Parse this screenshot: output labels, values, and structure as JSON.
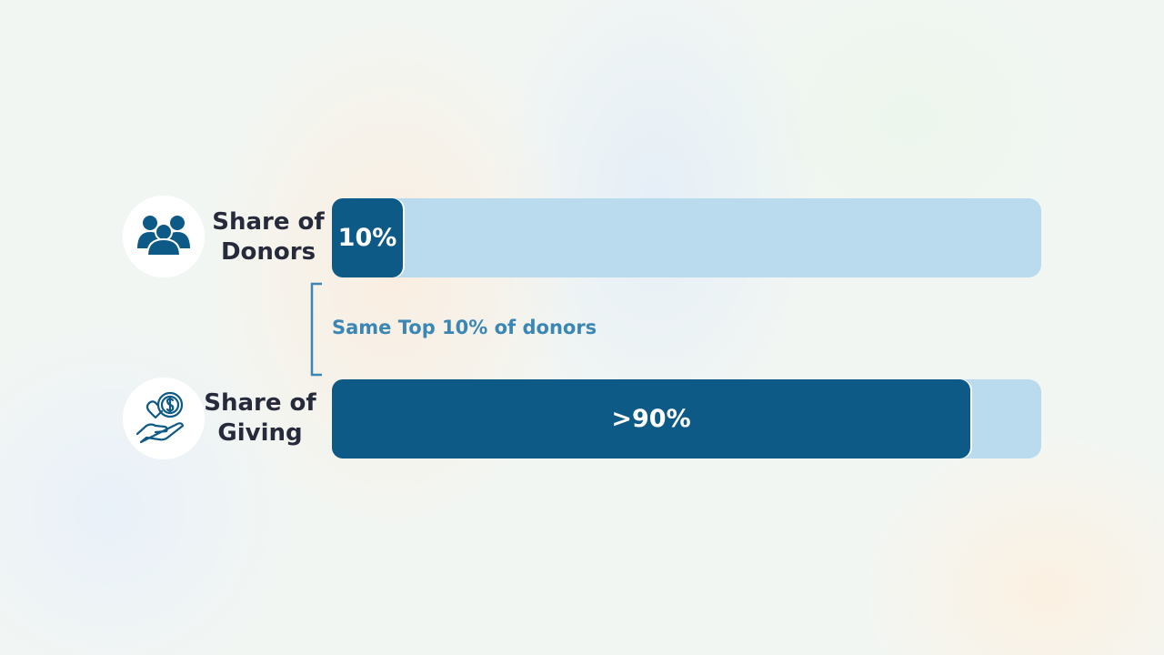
{
  "chart_data": {
    "type": "bar",
    "orientation": "horizontal",
    "categories": [
      "Share of Donors",
      "Share of Giving"
    ],
    "values": [
      10,
      90
    ],
    "value_labels": [
      "10%",
      ">90%"
    ],
    "color": "#0e5a87",
    "track_color": "#badaed",
    "xlim": [
      0,
      100
    ],
    "annotation": "Same Top 10% of donors"
  }
}
